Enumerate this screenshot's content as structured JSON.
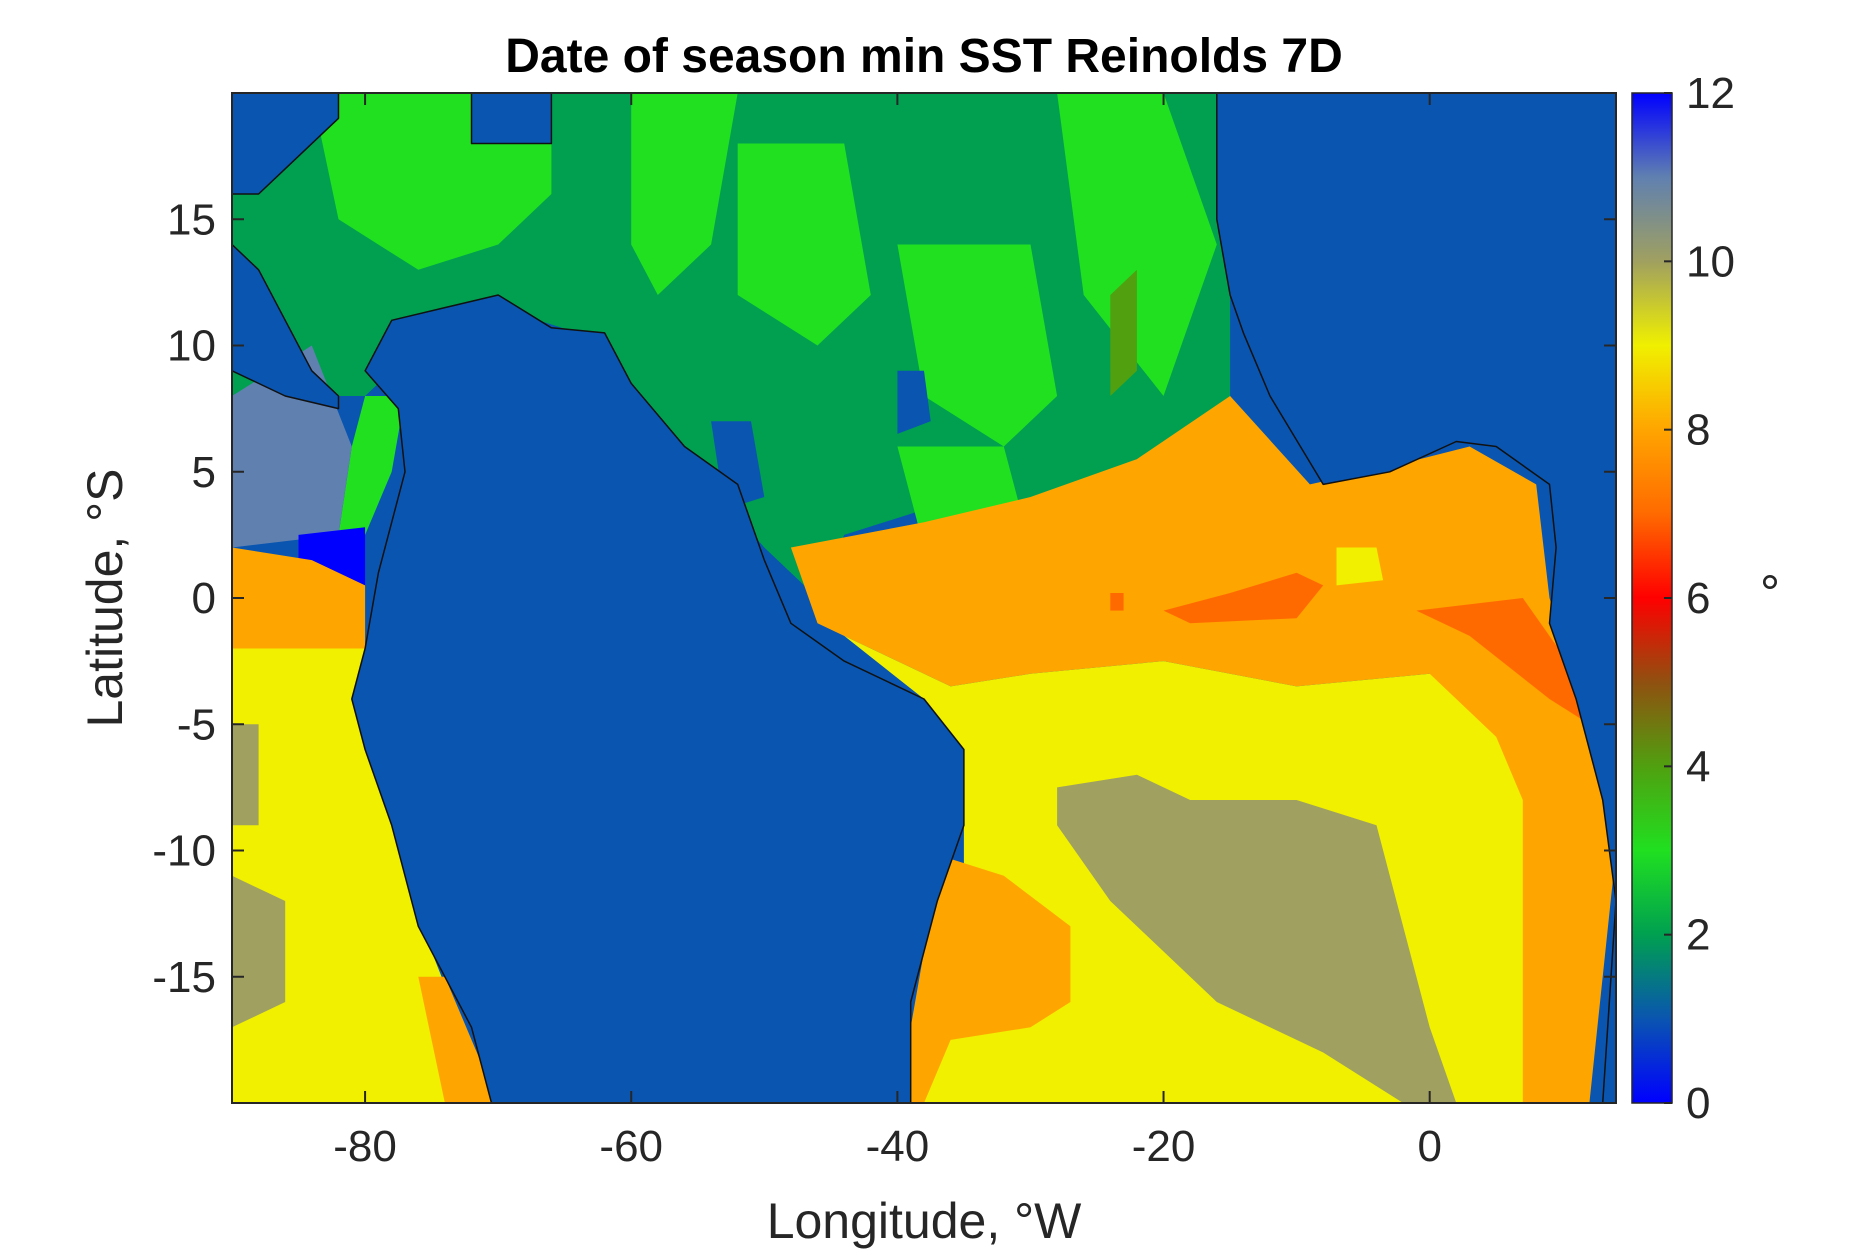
{
  "chart_data": {
    "type": "heatmap",
    "title": "Date of season min SST Reinolds 7D",
    "xlabel": "Longitude, °W",
    "ylabel": "Latitude, °S",
    "xlim": [
      -90,
      14
    ],
    "ylim": [
      -20,
      20
    ],
    "xticks": [
      -80,
      -60,
      -40,
      -20,
      0
    ],
    "yticks": [
      -15,
      -10,
      -5,
      0,
      5,
      10,
      15
    ],
    "colorbar": {
      "label": "°",
      "range": [
        0,
        12
      ],
      "ticks": [
        0,
        2,
        4,
        6,
        8,
        10,
        12
      ],
      "position": "right"
    },
    "colormap_stops": [
      {
        "v": 0,
        "color": "#0000ff"
      },
      {
        "v": 1,
        "color": "#0a55b0"
      },
      {
        "v": 2,
        "color": "#00a050"
      },
      {
        "v": 3,
        "color": "#20e020"
      },
      {
        "v": 4,
        "color": "#50a010"
      },
      {
        "v": 5,
        "color": "#905010"
      },
      {
        "v": 6,
        "color": "#ff0000"
      },
      {
        "v": 7,
        "color": "#ff6a00"
      },
      {
        "v": 8,
        "color": "#ffa500"
      },
      {
        "v": 9,
        "color": "#f0f000"
      },
      {
        "v": 10,
        "color": "#a0a060"
      },
      {
        "v": 11,
        "color": "#6080b0"
      },
      {
        "v": 12,
        "color": "#0000ff"
      }
    ],
    "land_value": 1,
    "regions": [
      {
        "name": "north-plains",
        "value": 2.3,
        "pts": [
          [
            -90,
            20
          ],
          [
            -15,
            20
          ],
          [
            -15,
            6
          ],
          [
            -22,
            5.5
          ],
          [
            -30,
            3.8
          ],
          [
            -38,
            3.5
          ],
          [
            -44,
            2.5
          ],
          [
            -46,
            0
          ],
          [
            -50,
            2
          ],
          [
            -55,
            5
          ],
          [
            -60,
            8
          ],
          [
            -64,
            10.5
          ],
          [
            -70,
            11.5
          ],
          [
            -74,
            11
          ],
          [
            -78,
            9
          ],
          [
            -80,
            8
          ],
          [
            -90,
            8
          ]
        ]
      },
      {
        "name": "north-bright-1",
        "value": 3,
        "pts": [
          [
            -84,
            20
          ],
          [
            -66,
            20
          ],
          [
            -66,
            16
          ],
          [
            -70,
            14
          ],
          [
            -76,
            13
          ],
          [
            -82,
            15
          ]
        ]
      },
      {
        "name": "north-bright-2",
        "value": 3,
        "pts": [
          [
            -60,
            20
          ],
          [
            -52,
            20
          ],
          [
            -54,
            14
          ],
          [
            -58,
            12
          ],
          [
            -60,
            14
          ]
        ]
      },
      {
        "name": "north-bright-3",
        "value": 3,
        "pts": [
          [
            -52,
            18
          ],
          [
            -44,
            18
          ],
          [
            -42,
            12
          ],
          [
            -46,
            10
          ],
          [
            -52,
            12
          ]
        ]
      },
      {
        "name": "north-bright-4",
        "value": 3,
        "pts": [
          [
            -40,
            14
          ],
          [
            -30,
            14
          ],
          [
            -28,
            8
          ],
          [
            -32,
            6
          ],
          [
            -38,
            8
          ]
        ]
      },
      {
        "name": "north-bright-5",
        "value": 3,
        "pts": [
          [
            -28,
            20
          ],
          [
            -20,
            20
          ],
          [
            -16,
            14
          ],
          [
            -20,
            8
          ],
          [
            -26,
            12
          ]
        ]
      },
      {
        "name": "north-bright-6",
        "value": 3,
        "pts": [
          [
            -40,
            6
          ],
          [
            -32,
            6
          ],
          [
            -30,
            2
          ],
          [
            -38,
            2
          ]
        ]
      },
      {
        "name": "north-olive-strip",
        "value": 4,
        "pts": [
          [
            -24,
            12
          ],
          [
            -22,
            13
          ],
          [
            -22,
            9
          ],
          [
            -24,
            8
          ]
        ]
      },
      {
        "name": "north-blue-blob-1",
        "value": 1,
        "pts": [
          [
            -40,
            9
          ],
          [
            -38,
            9
          ],
          [
            -37.5,
            7
          ],
          [
            -40,
            6.5
          ]
        ]
      },
      {
        "name": "north-blue-blob-2",
        "value": 1,
        "pts": [
          [
            -54,
            7
          ],
          [
            -51,
            7
          ],
          [
            -50,
            4
          ],
          [
            -53,
            3.5
          ]
        ]
      },
      {
        "name": "pacific-green-strip",
        "value": 3,
        "pts": [
          [
            -80,
            8
          ],
          [
            -77,
            8
          ],
          [
            -78,
            5
          ],
          [
            -80,
            2.5
          ],
          [
            -82,
            2.5
          ],
          [
            -81,
            6
          ]
        ]
      },
      {
        "name": "pacific-purple",
        "value": 11,
        "pts": [
          [
            -90,
            8
          ],
          [
            -84,
            10
          ],
          [
            -81,
            6
          ],
          [
            -82,
            2.5
          ],
          [
            -90,
            2
          ]
        ]
      },
      {
        "name": "pacific-blue-patch",
        "value": 0,
        "pts": [
          [
            -85,
            2.5
          ],
          [
            -80,
            2.8
          ],
          [
            -80,
            0.5
          ],
          [
            -85,
            0.5
          ]
        ]
      },
      {
        "name": "pacific-orange-band",
        "value": 8,
        "pts": [
          [
            -90,
            2
          ],
          [
            -84,
            1.5
          ],
          [
            -80,
            0.5
          ],
          [
            -80,
            -2
          ],
          [
            -90,
            -2
          ]
        ]
      },
      {
        "name": "pacific-yellow",
        "value": 9,
        "pts": [
          [
            -90,
            -2
          ],
          [
            -80,
            -2
          ],
          [
            -79,
            -6
          ],
          [
            -77,
            -10
          ],
          [
            -75,
            -14
          ],
          [
            -72,
            -18
          ],
          [
            -70,
            -20
          ],
          [
            -90,
            -20
          ]
        ]
      },
      {
        "name": "pacific-khaki-1",
        "value": 10,
        "pts": [
          [
            -90,
            -5
          ],
          [
            -88,
            -5
          ],
          [
            -88,
            -9
          ],
          [
            -90,
            -9
          ]
        ]
      },
      {
        "name": "pacific-khaki-2",
        "value": 10,
        "pts": [
          [
            -90,
            -11
          ],
          [
            -86,
            -12
          ],
          [
            -86,
            -16
          ],
          [
            -90,
            -17
          ]
        ]
      },
      {
        "name": "pacific-orange-coast",
        "value": 8,
        "pts": [
          [
            -76,
            -15
          ],
          [
            -74,
            -15
          ],
          [
            -70,
            -20
          ],
          [
            -74,
            -20
          ]
        ]
      },
      {
        "name": "atlantic-orange",
        "value": 8,
        "pts": [
          [
            -48,
            2
          ],
          [
            -38,
            3
          ],
          [
            -30,
            4
          ],
          [
            -22,
            5.5
          ],
          [
            -15,
            8
          ],
          [
            -9,
            4.5
          ],
          [
            -3,
            5.2
          ],
          [
            3,
            6
          ],
          [
            8,
            4.5
          ],
          [
            9,
            0
          ],
          [
            12,
            -5
          ],
          [
            14,
            -10
          ],
          [
            12,
            -20
          ],
          [
            0,
            -20
          ],
          [
            0,
            -3
          ],
          [
            -10,
            -3.5
          ],
          [
            -20,
            -2.5
          ],
          [
            -30,
            -3
          ],
          [
            -36,
            -3.5
          ],
          [
            -42,
            -2
          ],
          [
            -46,
            -1
          ]
        ]
      },
      {
        "name": "atlantic-yellow-1",
        "value": 9,
        "pts": [
          [
            -44,
            -1.5
          ],
          [
            -36,
            -3.5
          ],
          [
            -30,
            -3
          ],
          [
            -20,
            -2.5
          ],
          [
            -10,
            -3.5
          ],
          [
            0,
            -3
          ],
          [
            5,
            -5.5
          ],
          [
            7,
            -8
          ],
          [
            7,
            -20
          ],
          [
            -20,
            -20
          ],
          [
            -30,
            -20
          ],
          [
            -36,
            -20
          ],
          [
            -38,
            -20
          ],
          [
            -36,
            -16
          ],
          [
            -35,
            -12
          ],
          [
            -35,
            -8
          ],
          [
            -38,
            -4
          ]
        ]
      },
      {
        "name": "atlantic-orange-2",
        "value": 8,
        "pts": [
          [
            -38,
            -10
          ],
          [
            -32,
            -11
          ],
          [
            -27,
            -13
          ],
          [
            -27,
            -16
          ],
          [
            -30,
            -17
          ],
          [
            -36,
            -17.5
          ],
          [
            -38,
            -20
          ],
          [
            -40,
            -20
          ],
          [
            -38,
            -14
          ]
        ]
      },
      {
        "name": "atlantic-khaki",
        "value": 10,
        "pts": [
          [
            -28,
            -7.5
          ],
          [
            -22,
            -7
          ],
          [
            -18,
            -8
          ],
          [
            -10,
            -8
          ],
          [
            -4,
            -9
          ],
          [
            -2,
            -13
          ],
          [
            0,
            -17
          ],
          [
            2,
            -20
          ],
          [
            -2,
            -20
          ],
          [
            -8,
            -18
          ],
          [
            -16,
            -16
          ],
          [
            -24,
            -12
          ],
          [
            -28,
            -9
          ]
        ]
      },
      {
        "name": "atlantic-red-1",
        "value": 7,
        "pts": [
          [
            -20,
            -0.5
          ],
          [
            -15,
            0.2
          ],
          [
            -10,
            1
          ],
          [
            -8,
            0.5
          ],
          [
            -10,
            -0.8
          ],
          [
            -18,
            -1
          ]
        ]
      },
      {
        "name": "atlantic-red-2",
        "value": 7,
        "pts": [
          [
            -1,
            -0.5
          ],
          [
            7,
            0
          ],
          [
            11,
            -3
          ],
          [
            12,
            -5
          ],
          [
            9,
            -4
          ],
          [
            3,
            -1.5
          ]
        ]
      },
      {
        "name": "atlantic-yellow-blob",
        "value": 9,
        "pts": [
          [
            -7,
            2
          ],
          [
            -4,
            2
          ],
          [
            -3.5,
            0.7
          ],
          [
            -7,
            0.5
          ]
        ]
      },
      {
        "name": "atlantic-red-dot",
        "value": 7,
        "pts": [
          [
            -24,
            0.2
          ],
          [
            -23,
            0.2
          ],
          [
            -23,
            -0.5
          ],
          [
            -24,
            -0.5
          ]
        ]
      }
    ],
    "land": [
      {
        "name": "south-america",
        "pts": [
          [
            -80,
            9
          ],
          [
            -78,
            11
          ],
          [
            -74,
            11.5
          ],
          [
            -70,
            12
          ],
          [
            -66,
            10.7
          ],
          [
            -62,
            10.5
          ],
          [
            -60,
            8.5
          ],
          [
            -56,
            6
          ],
          [
            -52,
            4.5
          ],
          [
            -50,
            1.5
          ],
          [
            -48,
            -1
          ],
          [
            -44,
            -2.5
          ],
          [
            -38,
            -4
          ],
          [
            -35,
            -6
          ],
          [
            -35,
            -9
          ],
          [
            -37,
            -12
          ],
          [
            -39,
            -16
          ],
          [
            -39,
            -20
          ],
          [
            -70.5,
            -20
          ],
          [
            -72,
            -17
          ],
          [
            -76,
            -13
          ],
          [
            -78,
            -9
          ],
          [
            -80,
            -6
          ],
          [
            -81,
            -4
          ],
          [
            -80,
            -2
          ],
          [
            -79,
            1
          ],
          [
            -77,
            5
          ],
          [
            -77.5,
            7.5
          ]
        ]
      },
      {
        "name": "africa",
        "pts": [
          [
            -16,
            20
          ],
          [
            -16,
            15
          ],
          [
            -15,
            12
          ],
          [
            -14,
            10.5
          ],
          [
            -12,
            8
          ],
          [
            -8,
            4.5
          ],
          [
            -3,
            5
          ],
          [
            2,
            6.2
          ],
          [
            5,
            6
          ],
          [
            9,
            4.5
          ],
          [
            9.5,
            2
          ],
          [
            9,
            -1
          ],
          [
            11,
            -4
          ],
          [
            13,
            -8
          ],
          [
            14,
            -12
          ],
          [
            13,
            -20
          ],
          [
            14,
            -20
          ],
          [
            14,
            20
          ]
        ]
      },
      {
        "name": "gulf-of-mexico",
        "pts": [
          [
            -90,
            20
          ],
          [
            -82,
            20
          ],
          [
            -82,
            19
          ],
          [
            -86,
            17
          ],
          [
            -88,
            16
          ],
          [
            -90,
            16
          ]
        ]
      },
      {
        "name": "caribbean-patch",
        "pts": [
          [
            -72,
            20
          ],
          [
            -66,
            20
          ],
          [
            -66,
            18
          ],
          [
            -72,
            18
          ]
        ]
      },
      {
        "name": "central-america-pacific",
        "pts": [
          [
            -90,
            14
          ],
          [
            -88,
            13
          ],
          [
            -84,
            9
          ],
          [
            -82,
            8
          ],
          [
            -82,
            7.5
          ],
          [
            -86,
            8
          ],
          [
            -90,
            9
          ]
        ]
      }
    ]
  }
}
